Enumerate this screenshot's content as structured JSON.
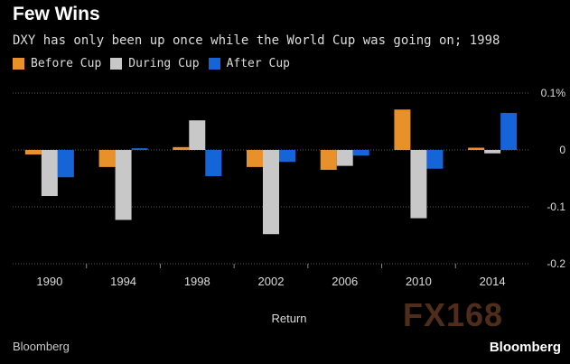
{
  "title": "Few Wins",
  "subtitle": "DXY has only been up once while the World Cup was going on; 1998",
  "source": "Bloomberg",
  "brand": "Bloomberg",
  "watermark": "FX168",
  "colors": {
    "before": "#e8902a",
    "during": "#c8c8c8",
    "after": "#1565d8",
    "grid": "#5a5a5a",
    "axis_text": "#dcdcdc"
  },
  "chart_data": {
    "type": "bar",
    "title": "Few Wins",
    "xlabel": "Return",
    "ylabel": "",
    "ylim": [
      -0.2,
      0.1
    ],
    "yticks": [
      0.1,
      0,
      -0.1,
      -0.2
    ],
    "ytick_labels": [
      "0.1%",
      "0",
      "-0.1",
      "-0.2"
    ],
    "categories": [
      "1990",
      "1994",
      "1998",
      "2002",
      "2006",
      "2010",
      "2014"
    ],
    "series": [
      {
        "name": "Before Cup",
        "key": "before",
        "values": [
          -0.008,
          -0.03,
          0.005,
          -0.03,
          -0.035,
          0.071,
          0.004
        ]
      },
      {
        "name": "During Cup",
        "key": "during",
        "values": [
          -0.081,
          -0.123,
          0.052,
          -0.148,
          -0.028,
          -0.12,
          -0.006
        ]
      },
      {
        "name": "After Cup",
        "key": "after",
        "values": [
          -0.048,
          0.003,
          -0.046,
          -0.021,
          -0.01,
          -0.033,
          0.065
        ]
      }
    ],
    "legend": "top-left",
    "grid": true
  }
}
